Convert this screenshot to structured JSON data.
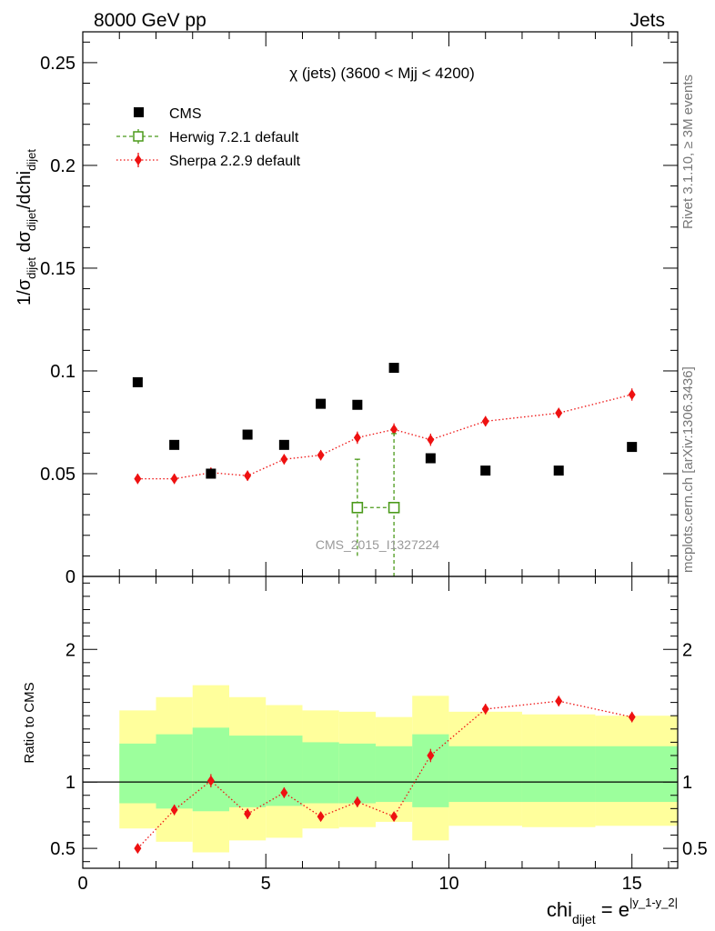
{
  "header": {
    "left": "8000 GeV pp",
    "right": "Jets"
  },
  "side": {
    "rivet": "Rivet 3.1.10, ≥ 3M events",
    "mcplots": "mcplots.cern.ch [arXiv:1306.3436]"
  },
  "chart_data": [
    {
      "type": "scatter",
      "panel": "main",
      "title": "χ (jets) (3600 < Mjj < 4200)",
      "watermark": "CMS_2015_I1327224",
      "ylabel": "1/σ_dijet dσ_dijet/dchi_dijet",
      "ylim": [
        0,
        0.265
      ],
      "xlim": [
        0,
        16.25
      ],
      "yticks": [
        "0",
        "0.05",
        "0.1",
        "0.15",
        "0.2",
        "0.25"
      ],
      "ytick_values": [
        0,
        0.05,
        0.1,
        0.15,
        0.2,
        0.25
      ],
      "grid": false,
      "legend": "top-left",
      "series": [
        {
          "name": "CMS",
          "color": "#000000",
          "x": [
            1.5,
            2.5,
            3.5,
            4.5,
            5.5,
            6.5,
            7.5,
            8.5,
            9.5,
            11,
            13,
            15
          ],
          "y": [
            0.0945,
            0.064,
            0.05,
            0.069,
            0.064,
            0.084,
            0.0835,
            0.1015,
            0.0575,
            0.0515,
            0.0515,
            0.063
          ]
        },
        {
          "name": "Herwig 7.2.1 default",
          "color": "#4b9a1a",
          "x": [
            7.5,
            8.5
          ],
          "y": [
            0.0335,
            0.0335
          ],
          "yerr_low": [
            0.0235,
            0.036
          ],
          "yerr_high": [
            0.0235,
            0.036
          ]
        },
        {
          "name": "Sherpa 2.2.9 default",
          "color": "#ee1111",
          "x": [
            1.5,
            2.5,
            3.5,
            4.5,
            5.5,
            6.5,
            7.5,
            8.5,
            9.5,
            11,
            13,
            15
          ],
          "y": [
            0.0475,
            0.0475,
            0.0505,
            0.049,
            0.057,
            0.059,
            0.0675,
            0.0715,
            0.0665,
            0.0755,
            0.0795,
            0.0885
          ],
          "yerr": [
            0.0025,
            0.0025,
            0.0025,
            0.0025,
            0.0025,
            0.0025,
            0.003,
            0.003,
            0.003,
            0.0025,
            0.0025,
            0.003
          ]
        }
      ]
    },
    {
      "type": "scatter",
      "panel": "ratio",
      "ylabel": "Ratio to CMS",
      "xlabel": "chi_dijet = e^|y_1-y_2|",
      "ylim": [
        0.35,
        2.55
      ],
      "xlim": [
        0,
        16.25
      ],
      "yticks": [
        "0.5",
        "1",
        "2"
      ],
      "ytick_values": [
        0.5,
        1,
        2
      ],
      "xticks": [
        "0",
        "5",
        "10",
        "15"
      ],
      "xtick_values": [
        0,
        5,
        10,
        15
      ],
      "bands": {
        "bins": [
          [
            1,
            2
          ],
          [
            2,
            3
          ],
          [
            3,
            4
          ],
          [
            4,
            5
          ],
          [
            5,
            6
          ],
          [
            6,
            7
          ],
          [
            7,
            8
          ],
          [
            8,
            9
          ],
          [
            9,
            10
          ],
          [
            10,
            12
          ],
          [
            12,
            14
          ],
          [
            14,
            16.25
          ]
        ],
        "yellow_low": [
          0.65,
          0.55,
          0.47,
          0.56,
          0.58,
          0.65,
          0.66,
          0.7,
          0.56,
          0.67,
          0.66,
          0.67
        ],
        "yellow_high": [
          1.54,
          1.64,
          1.73,
          1.64,
          1.58,
          1.54,
          1.53,
          1.49,
          1.65,
          1.53,
          1.51,
          1.5
        ],
        "green_low": [
          0.84,
          0.8,
          0.78,
          0.81,
          0.82,
          0.84,
          0.84,
          0.85,
          0.81,
          0.85,
          0.85,
          0.85
        ],
        "green_high": [
          1.29,
          1.36,
          1.41,
          1.35,
          1.35,
          1.3,
          1.29,
          1.27,
          1.36,
          1.27,
          1.27,
          1.27
        ]
      },
      "series": [
        {
          "name": "Sherpa 2.2.9 default",
          "color": "#ee1111",
          "x": [
            1.5,
            2.5,
            3.5,
            4.5,
            5.5,
            6.5,
            7.5,
            8.5,
            9.5,
            11,
            13,
            15
          ],
          "y": [
            0.5,
            0.79,
            1.01,
            0.76,
            0.92,
            0.74,
            0.85,
            0.74,
            1.2,
            1.55,
            1.61,
            1.49
          ],
          "yerr": [
            0.03,
            0.04,
            0.05,
            0.04,
            0.04,
            0.03,
            0.04,
            0.03,
            0.05,
            0.04,
            0.04,
            0.04
          ]
        }
      ]
    }
  ]
}
